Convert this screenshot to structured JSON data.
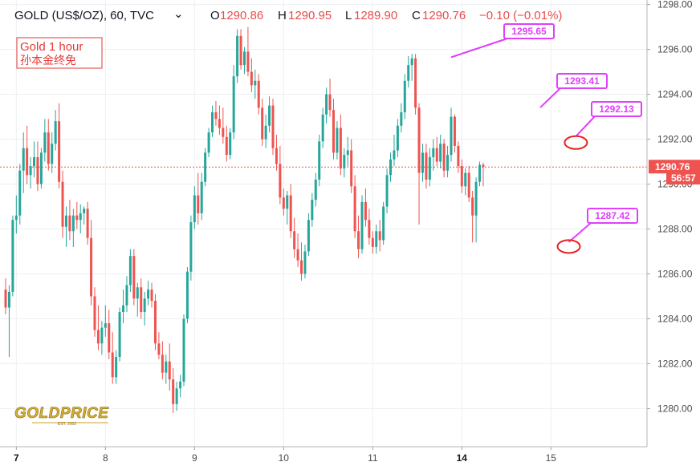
{
  "header": {
    "symbol": "GOLD (US$/OZ), 60, TVC",
    "dropdown_glyph": "⌄",
    "open_prefix": "O",
    "open": "1290.86",
    "high_prefix": "H",
    "high": "1290.95",
    "low_prefix": "L",
    "low": "1289.90",
    "close_prefix": "C",
    "close": "1290.76",
    "change": "−0.10 (−0.01%)"
  },
  "note": {
    "line1": "Gold 1 hour",
    "line2": "孙本金终免"
  },
  "price_tag": {
    "price": "1290.76",
    "countdown": "56:57"
  },
  "logo": {
    "text": "GOLDPRICE",
    "sub": "EST. 2002"
  },
  "colors": {
    "up": "#26a69a",
    "down": "#ef5350",
    "callout": "#e040fb",
    "circle": "#e82020",
    "price_line": "#ef5350",
    "grid": "#eceff2"
  },
  "chart_data": {
    "type": "candlestick",
    "title": "GOLD (US$/OZ), 60, TVC",
    "ylim": [
      1278.3,
      1298.2
    ],
    "y_ticks": [
      "1280.00",
      "1282.00",
      "1284.00",
      "1286.00",
      "1288.00",
      "1290.00",
      "1292.00",
      "1294.00",
      "1296.00",
      "1298.00"
    ],
    "x_ticks": [
      {
        "label": "7",
        "bold": true,
        "bar": 3
      },
      {
        "label": "8",
        "bold": false,
        "bar": 28
      },
      {
        "label": "9",
        "bold": false,
        "bar": 53
      },
      {
        "label": "10",
        "bold": false,
        "bar": 78
      },
      {
        "label": "11",
        "bold": false,
        "bar": 103
      },
      {
        "label": "14",
        "bold": true,
        "bar": 128
      },
      {
        "label": "15",
        "bold": false,
        "bar": 153
      }
    ],
    "bars": [
      [
        1285.3,
        1285.8,
        1284.2,
        1284.5
      ],
      [
        1284.5,
        1285.5,
        1282.3,
        1285.2
      ],
      [
        1285.2,
        1288.6,
        1285.0,
        1288.4
      ],
      [
        1288.4,
        1289.5,
        1287.8,
        1288.6
      ],
      [
        1288.6,
        1290.9,
        1288.2,
        1290.6
      ],
      [
        1290.6,
        1292.3,
        1289.6,
        1291.6
      ],
      [
        1291.6,
        1292.6,
        1290.0,
        1290.4
      ],
      [
        1290.4,
        1291.2,
        1289.8,
        1290.8
      ],
      [
        1290.8,
        1291.9,
        1290.3,
        1291.2
      ],
      [
        1291.2,
        1291.9,
        1289.7,
        1290.0
      ],
      [
        1290.0,
        1291.6,
        1289.8,
        1291.4
      ],
      [
        1291.4,
        1292.9,
        1291.0,
        1292.3
      ],
      [
        1292.3,
        1292.9,
        1290.6,
        1290.9
      ],
      [
        1290.9,
        1292.3,
        1290.5,
        1291.8
      ],
      [
        1291.8,
        1293.3,
        1291.5,
        1292.8
      ],
      [
        1292.8,
        1293.6,
        1289.8,
        1290.1
      ],
      [
        1290.1,
        1290.6,
        1287.6,
        1288.1
      ],
      [
        1288.1,
        1289.0,
        1287.2,
        1288.6
      ],
      [
        1288.6,
        1289.3,
        1287.5,
        1287.9
      ],
      [
        1287.9,
        1288.9,
        1287.2,
        1288.6
      ],
      [
        1288.6,
        1289.2,
        1288.0,
        1288.4
      ],
      [
        1288.4,
        1289.1,
        1287.8,
        1288.7
      ],
      [
        1288.7,
        1289.0,
        1288.2,
        1288.9
      ],
      [
        1288.9,
        1289.2,
        1287.3,
        1287.6
      ],
      [
        1287.6,
        1288.4,
        1284.6,
        1285.0
      ],
      [
        1285.0,
        1285.4,
        1283.2,
        1283.5
      ],
      [
        1283.5,
        1284.6,
        1282.6,
        1282.9
      ],
      [
        1282.9,
        1283.9,
        1282.4,
        1283.6
      ],
      [
        1283.6,
        1284.6,
        1283.2,
        1283.8
      ],
      [
        1283.8,
        1284.4,
        1282.2,
        1282.5
      ],
      [
        1282.5,
        1283.4,
        1281.1,
        1281.4
      ],
      [
        1281.4,
        1282.6,
        1281.1,
        1282.3
      ],
      [
        1282.3,
        1284.5,
        1282.1,
        1284.3
      ],
      [
        1284.3,
        1285.3,
        1283.8,
        1284.6
      ],
      [
        1284.6,
        1285.9,
        1284.3,
        1285.5
      ],
      [
        1285.5,
        1287.1,
        1285.2,
        1286.8
      ],
      [
        1286.8,
        1287.1,
        1284.6,
        1284.9
      ],
      [
        1284.9,
        1285.6,
        1284.1,
        1285.4
      ],
      [
        1285.4,
        1285.8,
        1284.0,
        1284.3
      ],
      [
        1284.3,
        1285.2,
        1283.7,
        1284.9
      ],
      [
        1284.9,
        1285.7,
        1284.6,
        1285.3
      ],
      [
        1285.3,
        1285.6,
        1284.5,
        1284.8
      ],
      [
        1284.8,
        1285.1,
        1282.6,
        1282.9
      ],
      [
        1282.9,
        1283.4,
        1282.2,
        1282.4
      ],
      [
        1282.4,
        1283.0,
        1281.3,
        1281.6
      ],
      [
        1281.6,
        1282.4,
        1281.1,
        1282.1
      ],
      [
        1282.1,
        1282.9,
        1280.8,
        1281.3
      ],
      [
        1281.3,
        1281.8,
        1279.8,
        1280.2
      ],
      [
        1280.2,
        1281.2,
        1279.9,
        1280.9
      ],
      [
        1280.9,
        1281.5,
        1280.5,
        1281.2
      ],
      [
        1281.2,
        1284.2,
        1281.0,
        1284.0
      ],
      [
        1284.0,
        1286.3,
        1283.8,
        1286.1
      ],
      [
        1286.1,
        1288.6,
        1285.7,
        1288.3
      ],
      [
        1288.3,
        1289.9,
        1288.0,
        1289.5
      ],
      [
        1289.5,
        1290.5,
        1288.2,
        1288.7
      ],
      [
        1288.7,
        1290.5,
        1288.4,
        1290.1
      ],
      [
        1290.1,
        1291.6,
        1289.9,
        1291.4
      ],
      [
        1291.4,
        1292.5,
        1291.2,
        1292.3
      ],
      [
        1292.3,
        1293.5,
        1292.1,
        1293.2
      ],
      [
        1293.2,
        1293.7,
        1292.6,
        1292.9
      ],
      [
        1292.9,
        1293.5,
        1292.2,
        1292.5
      ],
      [
        1292.5,
        1293.4,
        1291.8,
        1292.1
      ],
      [
        1292.1,
        1292.6,
        1291.0,
        1291.3
      ],
      [
        1291.3,
        1292.5,
        1291.1,
        1292.3
      ],
      [
        1292.3,
        1295.3,
        1292.0,
        1294.8
      ],
      [
        1294.8,
        1296.9,
        1294.5,
        1296.6
      ],
      [
        1296.6,
        1296.9,
        1295.1,
        1295.3
      ],
      [
        1295.3,
        1296.1,
        1294.9,
        1295.9
      ],
      [
        1295.9,
        1297.0,
        1294.8,
        1295.0
      ],
      [
        1295.0,
        1295.6,
        1294.1,
        1294.4
      ],
      [
        1294.4,
        1295.1,
        1293.8,
        1294.6
      ],
      [
        1294.6,
        1294.9,
        1293.1,
        1293.4
      ],
      [
        1293.4,
        1293.8,
        1291.7,
        1292.0
      ],
      [
        1292.0,
        1293.1,
        1291.6,
        1292.6
      ],
      [
        1292.6,
        1293.9,
        1292.3,
        1293.5
      ],
      [
        1293.5,
        1293.8,
        1291.3,
        1291.6
      ],
      [
        1291.6,
        1292.2,
        1290.6,
        1290.9
      ],
      [
        1290.9,
        1291.7,
        1289.1,
        1289.4
      ],
      [
        1289.4,
        1289.8,
        1288.6,
        1288.9
      ],
      [
        1288.9,
        1289.7,
        1288.2,
        1289.5
      ],
      [
        1289.5,
        1290.0,
        1287.6,
        1287.9
      ],
      [
        1287.9,
        1288.5,
        1286.7,
        1287.1
      ],
      [
        1287.1,
        1287.8,
        1286.3,
        1286.6
      ],
      [
        1286.6,
        1287.4,
        1285.7,
        1286.0
      ],
      [
        1286.0,
        1287.3,
        1285.8,
        1287.0
      ],
      [
        1287.0,
        1288.7,
        1286.8,
        1288.4
      ],
      [
        1288.4,
        1289.6,
        1288.1,
        1289.3
      ],
      [
        1289.3,
        1290.5,
        1289.0,
        1290.2
      ],
      [
        1290.2,
        1292.2,
        1289.9,
        1291.9
      ],
      [
        1291.9,
        1293.4,
        1291.6,
        1293.1
      ],
      [
        1293.1,
        1294.3,
        1292.7,
        1294.0
      ],
      [
        1294.0,
        1294.7,
        1293.0,
        1293.3
      ],
      [
        1293.3,
        1293.8,
        1291.1,
        1291.4
      ],
      [
        1291.4,
        1292.8,
        1291.1,
        1292.5
      ],
      [
        1292.5,
        1293.1,
        1290.4,
        1290.7
      ],
      [
        1290.7,
        1291.6,
        1290.3,
        1291.3
      ],
      [
        1291.3,
        1292.1,
        1290.8,
        1291.5
      ],
      [
        1291.5,
        1292.0,
        1289.6,
        1289.9
      ],
      [
        1289.9,
        1290.4,
        1287.6,
        1287.9
      ],
      [
        1287.9,
        1288.6,
        1286.7,
        1287.1
      ],
      [
        1287.1,
        1289.5,
        1286.9,
        1289.2
      ],
      [
        1289.2,
        1289.8,
        1288.1,
        1288.4
      ],
      [
        1288.4,
        1288.9,
        1287.3,
        1287.6
      ],
      [
        1287.6,
        1287.9,
        1286.9,
        1287.2
      ],
      [
        1287.2,
        1288.2,
        1286.9,
        1287.9
      ],
      [
        1287.9,
        1288.4,
        1287.0,
        1287.5
      ],
      [
        1287.5,
        1289.2,
        1287.3,
        1289.0
      ],
      [
        1289.0,
        1290.7,
        1288.7,
        1290.4
      ],
      [
        1290.4,
        1291.4,
        1290.1,
        1291.1
      ],
      [
        1291.1,
        1292.2,
        1290.8,
        1291.5
      ],
      [
        1291.5,
        1292.9,
        1291.2,
        1292.6
      ],
      [
        1292.6,
        1293.6,
        1292.3,
        1293.2
      ],
      [
        1293.2,
        1294.9,
        1292.9,
        1294.6
      ],
      [
        1294.6,
        1295.7,
        1294.3,
        1295.3
      ],
      [
        1295.3,
        1295.8,
        1294.6,
        1295.6
      ],
      [
        1295.6,
        1295.8,
        1293.1,
        1293.4
      ],
      [
        1293.4,
        1293.6,
        1288.2,
        1290.5
      ],
      [
        1290.5,
        1291.8,
        1290.1,
        1291.4
      ],
      [
        1291.4,
        1291.8,
        1289.8,
        1290.2
      ],
      [
        1290.2,
        1291.6,
        1289.9,
        1291.2
      ],
      [
        1291.2,
        1292.0,
        1290.6,
        1291.6
      ],
      [
        1291.6,
        1292.1,
        1290.8,
        1291.0
      ],
      [
        1291.0,
        1292.2,
        1290.7,
        1291.8
      ],
      [
        1291.8,
        1292.0,
        1290.3,
        1290.6
      ],
      [
        1290.6,
        1291.7,
        1290.3,
        1291.3
      ],
      [
        1291.3,
        1293.4,
        1291.0,
        1293.0
      ],
      [
        1293.0,
        1293.1,
        1291.4,
        1291.7
      ],
      [
        1291.7,
        1291.9,
        1290.5,
        1290.8
      ],
      [
        1290.8,
        1291.1,
        1289.6,
        1289.9
      ],
      [
        1289.9,
        1290.7,
        1289.5,
        1290.5
      ],
      [
        1290.5,
        1290.8,
        1289.2,
        1289.4
      ],
      [
        1289.4,
        1289.7,
        1287.4,
        1288.6
      ],
      [
        1288.6,
        1290.3,
        1287.4,
        1290.1
      ],
      [
        1290.1,
        1291.0,
        1289.9,
        1290.86
      ],
      [
        1290.86,
        1290.95,
        1289.9,
        1290.76
      ]
    ]
  },
  "callouts": [
    {
      "label": "1295.65",
      "bar": 125,
      "price": 1295.65
    },
    {
      "label": "1293.41",
      "bar": 150,
      "price": 1293.41
    },
    {
      "label": "1292.13",
      "bar": 160,
      "price": 1292.13
    },
    {
      "label": "1287.42",
      "bar": 158,
      "price": 1287.42
    }
  ],
  "circles": [
    {
      "bar": 160,
      "price": 1291.85
    },
    {
      "bar": 158,
      "price": 1287.22
    }
  ]
}
